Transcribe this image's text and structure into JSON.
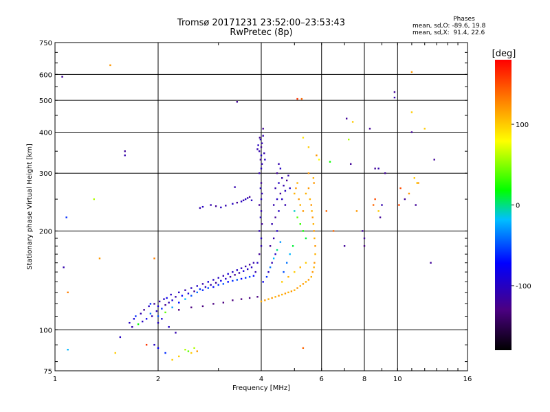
{
  "header": {
    "title_line1": "Tromsø 20171231 23:52:00–23:53:43",
    "title_line2": "RwPretec (8p)"
  },
  "phases_box": {
    "heading": "Phases",
    "line1": "mean, sd,O: -89.6, 19.8",
    "line2": "mean, sd,X:  91.4, 22.6"
  },
  "chart_data": {
    "type": "scatter",
    "title": "Tromsø 20171231 23:52:00–23:53:43",
    "subtitle": "RwPretec (8p)",
    "xlabel": "Frequency [MHz]",
    "ylabel": "Stationary phase Virtual Height [km]",
    "xscale": "log",
    "yscale": "log",
    "xlim": [
      1,
      16
    ],
    "ylim": [
      75,
      750
    ],
    "x_ticks": [
      1,
      2,
      4,
      6,
      8,
      10,
      16
    ],
    "x_tick_labels": [
      "1",
      "2",
      "4",
      "6",
      "8",
      "10",
      "16"
    ],
    "y_ticks": [
      75,
      100,
      200,
      300,
      400,
      500,
      600,
      750
    ],
    "y_tick_labels": [
      "75",
      "100",
      "200",
      "300",
      "400",
      "500",
      "600",
      "750"
    ],
    "grid": true,
    "colorbar": {
      "label": "[deg]",
      "range": [
        -180,
        180
      ],
      "ticks": [
        100,
        0,
        -100
      ],
      "tick_labels": [
        "100",
        "0",
        "-100"
      ],
      "colors": [
        "#000000",
        "#4b0082",
        "#0000ff",
        "#00bfff",
        "#00ff00",
        "#ffff00",
        "#ff8000",
        "#ff0000"
      ]
    },
    "points": [
      [
        1.05,
        590,
        -120
      ],
      [
        1.06,
        155,
        -110
      ],
      [
        1.08,
        220,
        -60
      ],
      [
        1.09,
        130,
        130
      ],
      [
        1.09,
        87,
        -20
      ],
      [
        1.3,
        250,
        60
      ],
      [
        1.35,
        165,
        120
      ],
      [
        1.45,
        640,
        120
      ],
      [
        1.5,
        85,
        100
      ],
      [
        1.6,
        350,
        -120
      ],
      [
        1.6,
        340,
        -110
      ],
      [
        1.55,
        95,
        -100
      ],
      [
        1.85,
        90,
        160
      ],
      [
        1.95,
        165,
        130
      ],
      [
        1.65,
        105,
        -100
      ],
      [
        1.68,
        102,
        -110
      ],
      [
        1.7,
        108,
        -90
      ],
      [
        1.72,
        110,
        -60
      ],
      [
        1.75,
        104,
        20
      ],
      [
        1.78,
        112,
        -110
      ],
      [
        1.8,
        106,
        -100
      ],
      [
        1.82,
        115,
        -120
      ],
      [
        1.85,
        108,
        -80
      ],
      [
        1.88,
        118,
        -100
      ],
      [
        1.9,
        112,
        -40
      ],
      [
        1.92,
        110,
        -110
      ],
      [
        1.95,
        120,
        -120
      ],
      [
        1.98,
        114,
        -100
      ],
      [
        2.0,
        118,
        -90
      ],
      [
        2.02,
        122,
        -110
      ],
      [
        2.05,
        116,
        -60
      ],
      [
        2.08,
        124,
        -100
      ],
      [
        2.1,
        119,
        -120
      ],
      [
        2.12,
        125,
        -80
      ],
      [
        2.15,
        121,
        -110
      ],
      [
        2.18,
        128,
        -100
      ],
      [
        2.2,
        123,
        -90
      ],
      [
        2.25,
        126,
        -110
      ],
      [
        2.3,
        130,
        -100
      ],
      [
        2.35,
        127,
        -70
      ],
      [
        2.4,
        132,
        -110
      ],
      [
        2.45,
        129,
        -90
      ],
      [
        2.5,
        134,
        -100
      ],
      [
        2.55,
        131,
        -120
      ],
      [
        2.6,
        136,
        -100
      ],
      [
        2.65,
        133,
        -60
      ],
      [
        2.7,
        138,
        -110
      ],
      [
        2.75,
        135,
        -100
      ],
      [
        2.8,
        140,
        -90
      ],
      [
        2.85,
        137,
        -110
      ],
      [
        2.9,
        142,
        -100
      ],
      [
        2.95,
        139,
        -120
      ],
      [
        3.0,
        144,
        -100
      ],
      [
        3.05,
        141,
        -80
      ],
      [
        3.1,
        146,
        -110
      ],
      [
        3.15,
        143,
        -100
      ],
      [
        3.2,
        148,
        -90
      ],
      [
        3.25,
        145,
        -110
      ],
      [
        3.3,
        150,
        -100
      ],
      [
        3.35,
        147,
        -120
      ],
      [
        3.4,
        152,
        -100
      ],
      [
        3.45,
        149,
        -110
      ],
      [
        3.5,
        154,
        -100
      ],
      [
        3.55,
        151,
        -90
      ],
      [
        3.6,
        156,
        -110
      ],
      [
        3.65,
        153,
        -100
      ],
      [
        3.7,
        158,
        -120
      ],
      [
        3.75,
        155,
        -100
      ],
      [
        3.8,
        160,
        -110
      ],
      [
        1.9,
        120,
        -60
      ],
      [
        2.0,
        110,
        -50
      ],
      [
        2.1,
        113,
        40
      ],
      [
        2.2,
        117,
        -30
      ],
      [
        2.3,
        121,
        -70
      ],
      [
        2.4,
        124,
        -20
      ],
      [
        2.5,
        127,
        -50
      ],
      [
        2.6,
        130,
        -40
      ],
      [
        2.7,
        132,
        -60
      ],
      [
        2.8,
        134,
        -50
      ],
      [
        2.9,
        135,
        -70
      ],
      [
        3.0,
        137,
        -60
      ],
      [
        3.1,
        138,
        -50
      ],
      [
        3.2,
        140,
        -70
      ],
      [
        3.3,
        141,
        -60
      ],
      [
        3.4,
        142,
        -50
      ],
      [
        3.5,
        143,
        -70
      ],
      [
        3.6,
        144,
        -60
      ],
      [
        3.7,
        145,
        -50
      ],
      [
        3.8,
        146,
        -70
      ],
      [
        2.3,
        115,
        -130
      ],
      [
        2.5,
        117,
        -130
      ],
      [
        2.7,
        118,
        -130
      ],
      [
        2.9,
        120,
        -130
      ],
      [
        3.1,
        121,
        -130
      ],
      [
        3.3,
        123,
        -130
      ],
      [
        3.5,
        124,
        -130
      ],
      [
        3.7,
        125,
        -130
      ],
      [
        3.9,
        126,
        -130
      ],
      [
        2.0,
        105,
        -100
      ],
      [
        2.05,
        108,
        -90
      ],
      [
        2.15,
        102,
        -100
      ],
      [
        2.25,
        98,
        -110
      ],
      [
        1.95,
        90,
        -100
      ],
      [
        2.0,
        88,
        -80
      ],
      [
        2.1,
        85,
        -60
      ],
      [
        2.3,
        83,
        100
      ],
      [
        2.4,
        87,
        60
      ],
      [
        2.45,
        86,
        40
      ],
      [
        2.5,
        85,
        100
      ],
      [
        2.55,
        88,
        60
      ],
      [
        2.6,
        86,
        120
      ],
      [
        2.2,
        81,
        100
      ],
      [
        2.65,
        235,
        -110
      ],
      [
        2.7,
        237,
        -100
      ],
      [
        2.85,
        240,
        -110
      ],
      [
        2.95,
        238,
        -120
      ],
      [
        3.05,
        236,
        -100
      ],
      [
        3.15,
        239,
        -110
      ],
      [
        3.3,
        242,
        -100
      ],
      [
        3.4,
        244,
        -120
      ],
      [
        3.5,
        246,
        -100
      ],
      [
        3.55,
        248,
        -110
      ],
      [
        3.6,
        250,
        -100
      ],
      [
        3.65,
        252,
        -110
      ],
      [
        3.7,
        254,
        -120
      ],
      [
        3.75,
        248,
        -100
      ],
      [
        3.35,
        272,
        -110
      ],
      [
        3.4,
        495,
        -120
      ],
      [
        3.85,
        150,
        -110
      ],
      [
        3.9,
        160,
        -100
      ],
      [
        3.95,
        170,
        -120
      ],
      [
        4.0,
        180,
        -110
      ],
      [
        4.0,
        190,
        -100
      ],
      [
        3.95,
        200,
        -110
      ],
      [
        4.02,
        210,
        -120
      ],
      [
        3.98,
        220,
        -100
      ],
      [
        4.0,
        230,
        -110
      ],
      [
        3.95,
        240,
        -120
      ],
      [
        4.0,
        250,
        -100
      ],
      [
        4.02,
        260,
        -110
      ],
      [
        3.98,
        270,
        -100
      ],
      [
        4.0,
        280,
        -120
      ],
      [
        3.95,
        300,
        -110
      ],
      [
        4.0,
        310,
        -100
      ],
      [
        4.02,
        320,
        -110
      ],
      [
        3.98,
        330,
        -120
      ],
      [
        4.0,
        340,
        -100
      ],
      [
        3.95,
        350,
        -110
      ],
      [
        4.0,
        360,
        -120
      ],
      [
        4.02,
        370,
        -110
      ],
      [
        3.98,
        380,
        -100
      ],
      [
        4.05,
        390,
        -110
      ],
      [
        4.05,
        410,
        -120
      ],
      [
        3.9,
        355,
        -110
      ],
      [
        3.92,
        365,
        -100
      ],
      [
        4.08,
        345,
        -110
      ],
      [
        4.1,
        330,
        -100
      ],
      [
        3.96,
        385,
        -120
      ],
      [
        4.2,
        150,
        -100
      ],
      [
        4.3,
        160,
        -110
      ],
      [
        4.4,
        170,
        -100
      ],
      [
        4.25,
        180,
        -120
      ],
      [
        4.35,
        190,
        -110
      ],
      [
        4.45,
        200,
        -100
      ],
      [
        4.3,
        210,
        -110
      ],
      [
        4.4,
        220,
        -120
      ],
      [
        4.5,
        230,
        -100
      ],
      [
        4.35,
        240,
        -110
      ],
      [
        4.45,
        250,
        -100
      ],
      [
        4.55,
        260,
        -120
      ],
      [
        4.4,
        270,
        -110
      ],
      [
        4.5,
        280,
        -100
      ],
      [
        4.6,
        290,
        -110
      ],
      [
        4.45,
        300,
        -120
      ],
      [
        4.55,
        310,
        -100
      ],
      [
        4.65,
        275,
        -110
      ],
      [
        4.7,
        265,
        -100
      ],
      [
        4.75,
        285,
        -120
      ],
      [
        4.8,
        295,
        -110
      ],
      [
        4.6,
        250,
        -100
      ],
      [
        4.7,
        240,
        -110
      ],
      [
        4.85,
        270,
        -100
      ],
      [
        4.5,
        320,
        -110
      ],
      [
        4.05,
        140,
        -80
      ],
      [
        4.15,
        145,
        -60
      ],
      [
        4.25,
        155,
        -40
      ],
      [
        4.35,
        165,
        -20
      ],
      [
        4.45,
        175,
        0
      ],
      [
        4.55,
        185,
        -30
      ],
      [
        4.65,
        150,
        -50
      ],
      [
        4.75,
        160,
        -40
      ],
      [
        4.85,
        170,
        -20
      ],
      [
        4.95,
        180,
        10
      ],
      [
        4.0,
        122,
        110
      ],
      [
        4.1,
        123,
        120
      ],
      [
        4.2,
        124,
        110
      ],
      [
        4.3,
        125,
        120
      ],
      [
        4.4,
        126,
        110
      ],
      [
        4.5,
        127,
        120
      ],
      [
        4.6,
        128,
        110
      ],
      [
        4.7,
        129,
        120
      ],
      [
        4.8,
        130,
        110
      ],
      [
        4.9,
        131,
        120
      ],
      [
        5.0,
        132,
        110
      ],
      [
        5.1,
        134,
        120
      ],
      [
        5.2,
        136,
        110
      ],
      [
        5.3,
        138,
        120
      ],
      [
        5.4,
        140,
        110
      ],
      [
        5.5,
        142,
        120
      ],
      [
        5.6,
        145,
        110
      ],
      [
        5.65,
        150,
        120
      ],
      [
        5.7,
        155,
        110
      ],
      [
        5.72,
        160,
        120
      ],
      [
        4.6,
        140,
        100
      ],
      [
        4.8,
        145,
        110
      ],
      [
        5.0,
        150,
        100
      ],
      [
        5.2,
        155,
        110
      ],
      [
        5.4,
        160,
        100
      ],
      [
        5.0,
        260,
        110
      ],
      [
        5.05,
        270,
        120
      ],
      [
        5.1,
        280,
        110
      ],
      [
        5.15,
        250,
        120
      ],
      [
        5.2,
        240,
        110
      ],
      [
        5.3,
        230,
        120
      ],
      [
        5.4,
        260,
        110
      ],
      [
        5.5,
        270,
        120
      ],
      [
        5.55,
        250,
        110
      ],
      [
        5.6,
        240,
        120
      ],
      [
        5.62,
        230,
        110
      ],
      [
        5.65,
        220,
        120
      ],
      [
        5.68,
        210,
        110
      ],
      [
        5.7,
        200,
        120
      ],
      [
        5.72,
        190,
        110
      ],
      [
        5.75,
        180,
        120
      ],
      [
        5.75,
        170,
        110
      ],
      [
        5.7,
        280,
        120
      ],
      [
        5.68,
        290,
        110
      ],
      [
        5.5,
        300,
        120
      ],
      [
        5.2,
        210,
        30
      ],
      [
        5.3,
        200,
        20
      ],
      [
        5.4,
        190,
        10
      ],
      [
        5.1,
        220,
        40
      ],
      [
        5.0,
        230,
        -10
      ],
      [
        5.1,
        505,
        160
      ],
      [
        5.25,
        505,
        140
      ],
      [
        5.3,
        385,
        90
      ],
      [
        5.5,
        360,
        100
      ],
      [
        5.9,
        330,
        80
      ],
      [
        5.3,
        88,
        140
      ],
      [
        5.8,
        340,
        120
      ],
      [
        6.35,
        325,
        20
      ],
      [
        6.2,
        230,
        140
      ],
      [
        6.5,
        200,
        140
      ],
      [
        7.0,
        180,
        -120
      ],
      [
        7.1,
        440,
        -120
      ],
      [
        7.4,
        430,
        100
      ],
      [
        7.2,
        380,
        60
      ],
      [
        7.3,
        320,
        -120
      ],
      [
        7.6,
        230,
        120
      ],
      [
        8.0,
        190,
        -120
      ],
      [
        8.3,
        410,
        -120
      ],
      [
        8.6,
        310,
        -120
      ],
      [
        8.8,
        310,
        -110
      ],
      [
        8.5,
        240,
        140
      ],
      [
        8.6,
        250,
        150
      ],
      [
        8.8,
        230,
        100
      ],
      [
        8.9,
        220,
        -120
      ],
      [
        9.0,
        240,
        -110
      ],
      [
        9.2,
        300,
        -120
      ],
      [
        9.8,
        530,
        -120
      ],
      [
        9.8,
        510,
        -110
      ],
      [
        10.1,
        240,
        150
      ],
      [
        10.2,
        270,
        150
      ],
      [
        10.5,
        250,
        -120
      ],
      [
        10.8,
        260,
        120
      ],
      [
        11.0,
        400,
        -120
      ],
      [
        11.2,
        290,
        100
      ],
      [
        11.4,
        280,
        100
      ],
      [
        11.0,
        610,
        120
      ],
      [
        11.0,
        460,
        100
      ],
      [
        11.5,
        280,
        120
      ],
      [
        12.0,
        410,
        100
      ],
      [
        12.8,
        330,
        -120
      ],
      [
        12.5,
        160,
        -120
      ],
      [
        11.3,
        240,
        -120
      ],
      [
        7.9,
        200,
        -120
      ],
      [
        8.0,
        180,
        -130
      ]
    ]
  }
}
